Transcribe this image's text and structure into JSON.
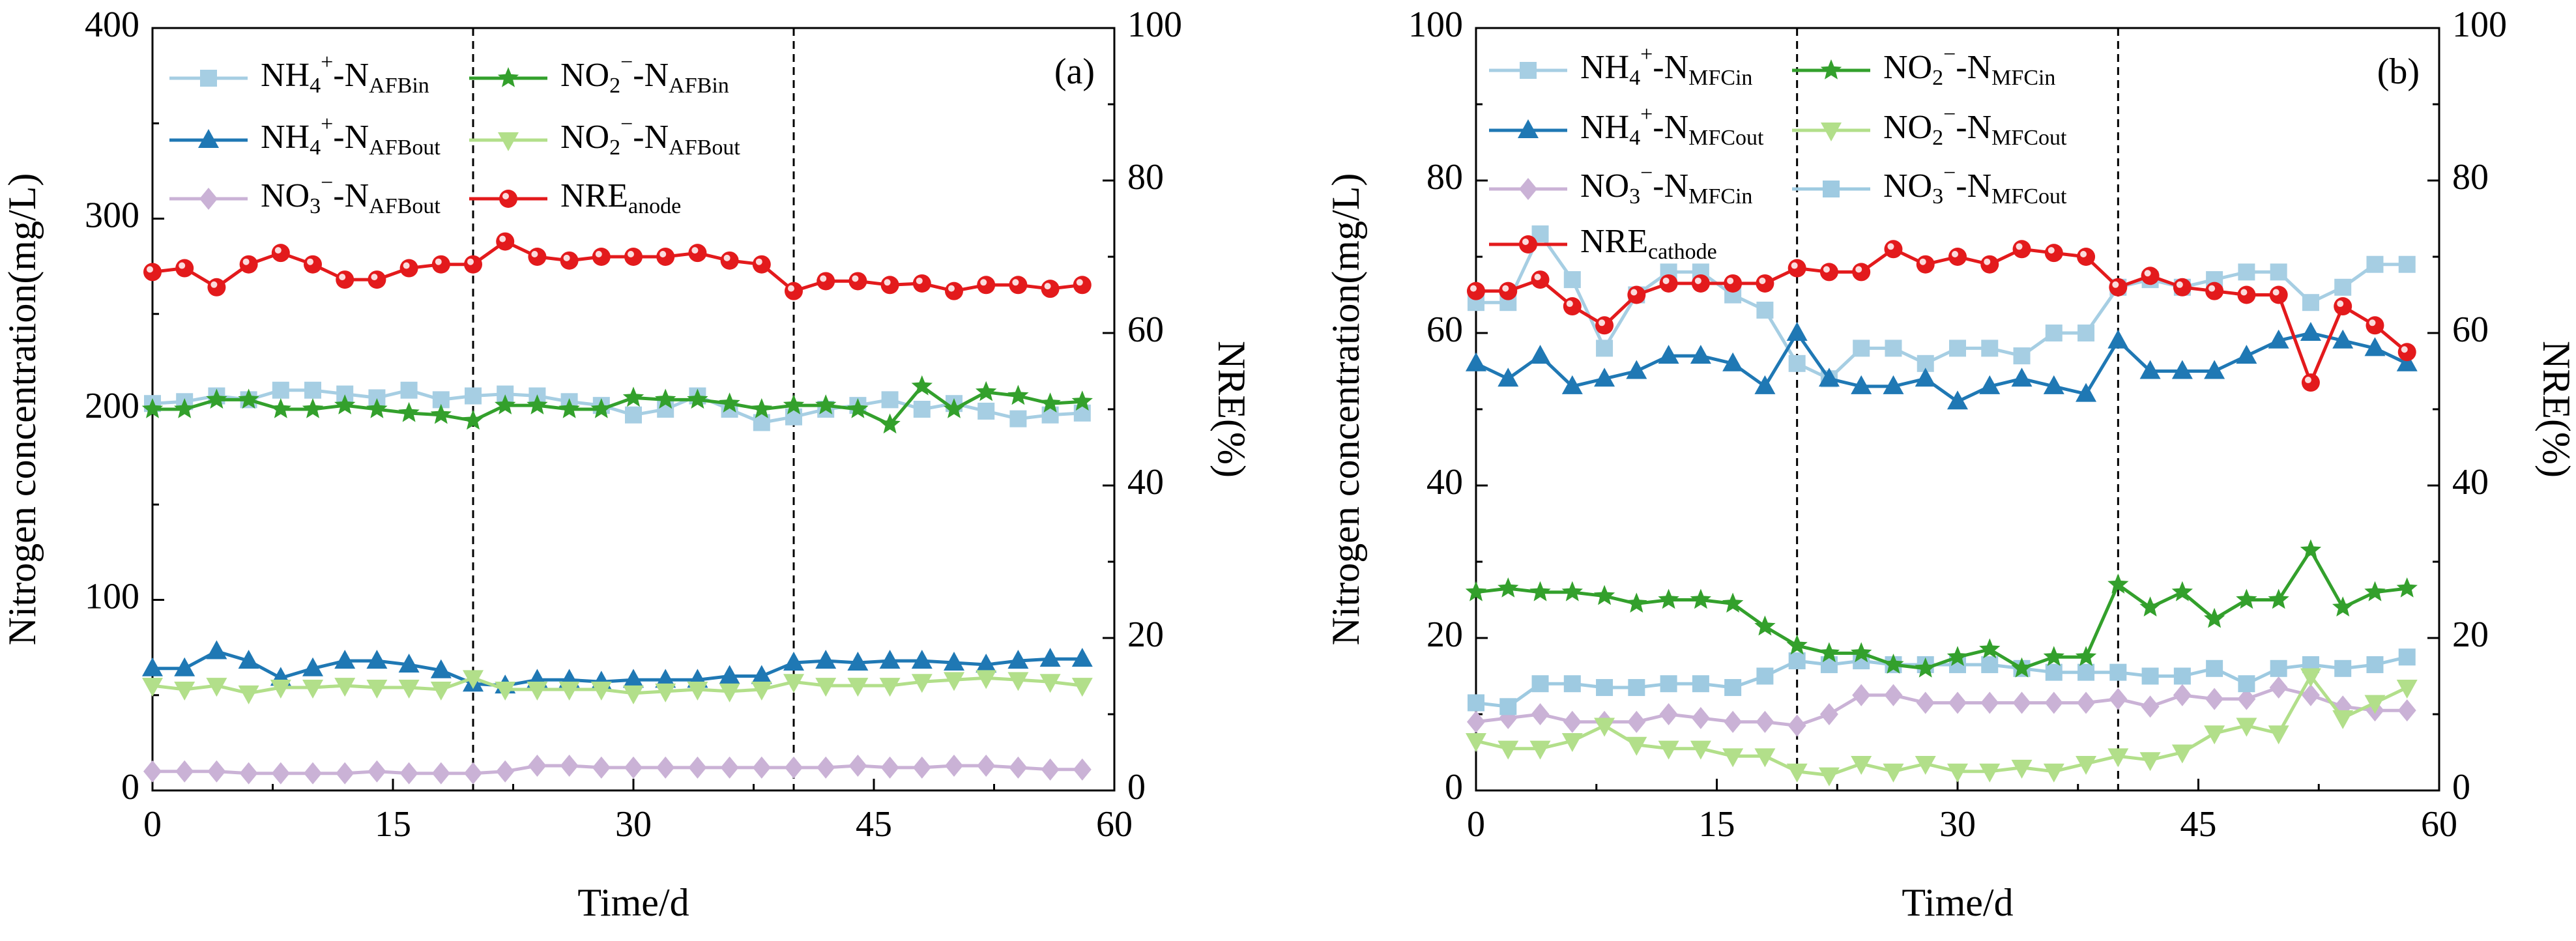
{
  "chart_data": [
    {
      "id": "a",
      "type": "line",
      "panel_label": "(a)",
      "xlabel": "Time/d",
      "ylabel": "Nitrogen concentration(mg/L)",
      "y2label": "NRE(%)",
      "xlim": [
        0,
        60
      ],
      "ylim": [
        0,
        400
      ],
      "y2lim": [
        0,
        100
      ],
      "xticks": [
        "0",
        "15",
        "30",
        "45",
        "60"
      ],
      "yticks": [
        "0",
        "100",
        "200",
        "300",
        "400"
      ],
      "y2ticks": [
        "0",
        "20",
        "40",
        "60",
        "80",
        "100"
      ],
      "vlines": [
        20,
        40
      ],
      "x": [
        0,
        2,
        4,
        6,
        8,
        10,
        12,
        14,
        16,
        18,
        20,
        22,
        24,
        26,
        28,
        30,
        32,
        34,
        36,
        38,
        40,
        42,
        44,
        46,
        48,
        50,
        52,
        54,
        56,
        58
      ],
      "series": [
        {
          "key": "nh4_in",
          "main": "NH",
          "sub1": "4",
          "sup": "+",
          "mid": "-N",
          "sub2": "AFBin",
          "color": "#a6cee3",
          "marker": "square",
          "axis": "left",
          "values": [
            203,
            204,
            207,
            205,
            210,
            210,
            208,
            206,
            210,
            205,
            207,
            208,
            207,
            204,
            202,
            197,
            200,
            207,
            200,
            193,
            196,
            200,
            202,
            205,
            200,
            203,
            199,
            195,
            197,
            198
          ]
        },
        {
          "key": "nh4_out",
          "main": "NH",
          "sub1": "4",
          "sup": "+",
          "mid": "-N",
          "sub2": "AFBout",
          "color": "#1f78b4",
          "marker": "triangle",
          "axis": "left",
          "values": [
            64,
            64,
            73,
            68,
            59,
            64,
            68,
            68,
            66,
            63,
            56,
            55,
            58,
            58,
            57,
            58,
            58,
            58,
            60,
            60,
            67,
            68,
            67,
            68,
            68,
            67,
            66,
            68,
            69,
            69
          ]
        },
        {
          "key": "no3_out",
          "main": "NO",
          "sub1": "3",
          "sup": "−",
          "mid": "-N",
          "sub2": "AFBout",
          "color": "#cab2d6",
          "marker": "diamond",
          "axis": "left",
          "values": [
            10,
            10,
            10,
            9,
            9,
            9,
            9,
            10,
            9,
            9,
            9,
            10,
            13,
            13,
            12,
            12,
            12,
            12,
            12,
            12,
            12,
            12,
            13,
            12,
            12,
            13,
            13,
            12,
            11,
            11
          ]
        },
        {
          "key": "no2_in",
          "main": "NO",
          "sub1": "2",
          "sup": "−",
          "mid": "-N",
          "sub2": "AFBin",
          "color": "#33a02c",
          "marker": "star",
          "axis": "left",
          "values": [
            200,
            200,
            205,
            205,
            200,
            200,
            202,
            200,
            198,
            197,
            194,
            202,
            202,
            200,
            200,
            206,
            205,
            205,
            203,
            200,
            202,
            202,
            200,
            192,
            212,
            200,
            209,
            207,
            203,
            204
          ]
        },
        {
          "key": "no2_out",
          "main": "NO",
          "sub1": "2",
          "sup": "−",
          "mid": "-N",
          "sub2": "AFBout",
          "color": "#b2df8a",
          "marker": "invtriangle",
          "axis": "left",
          "values": [
            55,
            53,
            55,
            51,
            54,
            54,
            55,
            54,
            54,
            53,
            59,
            53,
            53,
            53,
            53,
            51,
            52,
            53,
            52,
            53,
            57,
            55,
            55,
            55,
            57,
            58,
            59,
            58,
            57,
            55
          ]
        },
        {
          "key": "nre",
          "main": "NRE",
          "sub1": "",
          "sup": "",
          "mid": "",
          "sub2": "anode",
          "color": "#e31a1c",
          "marker": "circle",
          "axis": "right",
          "values": [
            68,
            68.5,
            66,
            69,
            70.5,
            69,
            67,
            67,
            68.5,
            69,
            69,
            72,
            70,
            69.5,
            70,
            70,
            70,
            70.5,
            69.5,
            69,
            65.5,
            66.8,
            66.8,
            66.3,
            66.5,
            65.5,
            66.3,
            66.3,
            65.8,
            66.3
          ]
        }
      ]
    },
    {
      "id": "b",
      "type": "line",
      "panel_label": "(b)",
      "xlabel": "Time/d",
      "ylabel": "Nitrogen concentration(mg/L)",
      "y2label": "NRE(%)",
      "xlim": [
        0,
        60
      ],
      "ylim": [
        0,
        100
      ],
      "y2lim": [
        0,
        100
      ],
      "xticks": [
        "0",
        "15",
        "30",
        "45",
        "60"
      ],
      "yticks": [
        "0",
        "20",
        "40",
        "60",
        "80",
        "100"
      ],
      "y2ticks": [
        "0",
        "20",
        "40",
        "60",
        "80",
        "100"
      ],
      "vlines": [
        20,
        40
      ],
      "x": [
        0,
        2,
        4,
        6,
        8,
        10,
        12,
        14,
        16,
        18,
        20,
        22,
        24,
        26,
        28,
        30,
        32,
        34,
        36,
        38,
        40,
        42,
        44,
        46,
        48,
        50,
        52,
        54,
        56,
        58
      ],
      "series": [
        {
          "key": "nh4_in",
          "main": "NH",
          "sub1": "4",
          "sup": "+",
          "mid": "-N",
          "sub2": "MFCin",
          "color": "#a6cee3",
          "marker": "square",
          "axis": "left",
          "values": [
            64,
            64,
            73,
            67,
            58,
            65,
            68,
            68,
            65,
            63,
            56,
            54,
            58,
            58,
            56,
            58,
            58,
            57,
            60,
            60,
            66,
            67,
            66,
            67,
            68,
            68,
            64,
            66,
            69,
            69
          ]
        },
        {
          "key": "nh4_out",
          "main": "NH",
          "sub1": "4",
          "sup": "+",
          "mid": "-N",
          "sub2": "MFCout",
          "color": "#1f78b4",
          "marker": "triangle",
          "axis": "left",
          "values": [
            56,
            54,
            57,
            53,
            54,
            55,
            57,
            57,
            56,
            53,
            60,
            54,
            53,
            53,
            54,
            51,
            53,
            54,
            53,
            52,
            59,
            55,
            55,
            55,
            57,
            59,
            60,
            59,
            58,
            56
          ]
        },
        {
          "key": "no3_in",
          "main": "NO",
          "sub1": "3",
          "sup": "−",
          "mid": "-N",
          "sub2": "MFCin",
          "color": "#cab2d6",
          "marker": "diamond",
          "axis": "left",
          "values": [
            9,
            9.5,
            10,
            9,
            9,
            9,
            10,
            9.5,
            9,
            9,
            8.5,
            10,
            12.5,
            12.5,
            11.5,
            11.5,
            11.5,
            11.5,
            11.5,
            11.5,
            12,
            11,
            12.5,
            12,
            12,
            13.5,
            12.5,
            11,
            10.5,
            10.5
          ]
        },
        {
          "key": "no3_out",
          "main": "NO",
          "sub1": "3",
          "sup": "−",
          "mid": "-N",
          "sub2": "MFCout",
          "color": "#9ecae1",
          "marker": "square",
          "axis": "left",
          "values": [
            11.5,
            11,
            14,
            14,
            13.5,
            13.5,
            14,
            14,
            13.5,
            15,
            17,
            16.5,
            17,
            16.5,
            16.5,
            16.5,
            16.5,
            16,
            15.5,
            15.5,
            15.5,
            15,
            15,
            16,
            14,
            16,
            16.5,
            16,
            16.5,
            17.5
          ]
        },
        {
          "key": "no2_in",
          "main": "NO",
          "sub1": "2",
          "sup": "−",
          "mid": "-N",
          "sub2": "MFCin",
          "color": "#33a02c",
          "marker": "star",
          "axis": "left",
          "values": [
            26,
            26.5,
            26,
            26,
            25.5,
            24.5,
            25,
            25,
            24.5,
            21.5,
            19,
            18,
            18,
            16.5,
            16,
            17.5,
            18.5,
            16,
            17.5,
            17.5,
            27,
            24,
            26,
            22.5,
            25,
            25,
            31.5,
            24,
            26,
            26.5
          ]
        },
        {
          "key": "no2_out",
          "main": "NO",
          "sub1": "2",
          "sup": "−",
          "mid": "-N",
          "sub2": "MFCout",
          "color": "#b2df8a",
          "marker": "invtriangle",
          "axis": "left",
          "values": [
            6.5,
            5.5,
            5.5,
            6.5,
            8.5,
            6,
            5.5,
            5.5,
            4.5,
            4.5,
            2.5,
            2,
            3.5,
            2.5,
            3.5,
            2.5,
            2.5,
            3,
            2.5,
            3.5,
            4.5,
            4,
            5,
            7.5,
            8.5,
            7.5,
            15,
            9.5,
            11.5,
            13.5
          ]
        },
        {
          "key": "nre",
          "main": "NRE",
          "sub1": "",
          "sup": "",
          "mid": "",
          "sub2": "cathode",
          "color": "#e31a1c",
          "marker": "circle",
          "axis": "right",
          "values": [
            65.5,
            65.5,
            67,
            63.5,
            61,
            65,
            66.5,
            66.5,
            66.5,
            66.5,
            68.5,
            68,
            68,
            71,
            69,
            70,
            69,
            71,
            70.5,
            70,
            66,
            67.5,
            66,
            65.5,
            65,
            65,
            53.5,
            63.5,
            61,
            57.5
          ]
        }
      ]
    }
  ]
}
